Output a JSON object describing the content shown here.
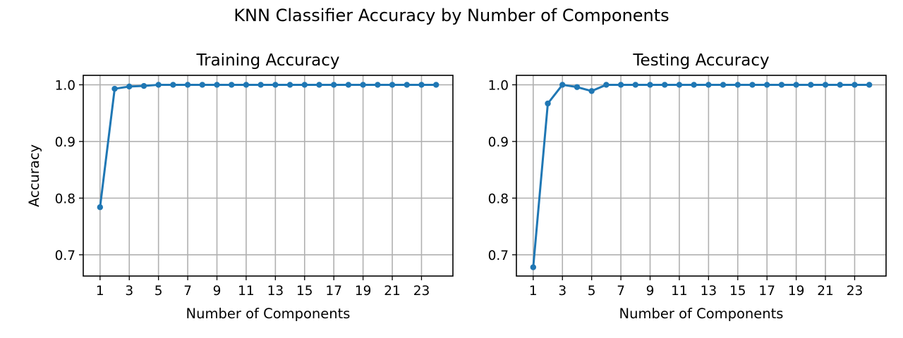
{
  "figure": {
    "suptitle": "KNN Classifier Accuracy by Number of Components"
  },
  "chart_data": [
    {
      "type": "line",
      "title": "Training Accuracy",
      "xlabel": "Number of Components",
      "ylabel": "Accuracy",
      "xlim": [
        -0.15,
        25.15
      ],
      "ylim": [
        0.6625,
        1.0167
      ],
      "xticks": [
        1,
        3,
        5,
        7,
        9,
        11,
        13,
        15,
        17,
        19,
        21,
        23
      ],
      "yticks": [
        0.7,
        0.8,
        0.9,
        1.0
      ],
      "ytick_labels": [
        "0.7",
        "0.8",
        "0.9",
        "1.0"
      ],
      "grid": true,
      "color": "#1f77b4",
      "marker": "circle",
      "series": [
        {
          "x": [
            1,
            2,
            3,
            4,
            5,
            6,
            7,
            8,
            9,
            10,
            11,
            12,
            13,
            14,
            15,
            16,
            17,
            18,
            19,
            20,
            21,
            22,
            23,
            24
          ],
          "values": [
            0.784,
            0.993,
            0.997,
            0.998,
            1.0,
            1.0,
            1.0,
            1.0,
            1.0,
            1.0,
            1.0,
            1.0,
            1.0,
            1.0,
            1.0,
            1.0,
            1.0,
            1.0,
            1.0,
            1.0,
            1.0,
            1.0,
            1.0,
            1.0
          ]
        }
      ]
    },
    {
      "type": "line",
      "title": "Testing Accuracy",
      "xlabel": "Number of Components",
      "ylabel": "",
      "xlim": [
        -0.15,
        25.15
      ],
      "ylim": [
        0.6625,
        1.0167
      ],
      "xticks": [
        1,
        3,
        5,
        7,
        9,
        11,
        13,
        15,
        17,
        19,
        21,
        23
      ],
      "yticks": [
        0.7,
        0.8,
        0.9,
        1.0
      ],
      "ytick_labels": [
        "0.7",
        "0.8",
        "0.9",
        "1.0"
      ],
      "grid": true,
      "color": "#1f77b4",
      "marker": "circle",
      "series": [
        {
          "x": [
            1,
            2,
            3,
            4,
            5,
            6,
            7,
            8,
            9,
            10,
            11,
            12,
            13,
            14,
            15,
            16,
            17,
            18,
            19,
            20,
            21,
            22,
            23,
            24
          ],
          "values": [
            0.678,
            0.967,
            1.0,
            0.996,
            0.989,
            1.0,
            1.0,
            1.0,
            1.0,
            1.0,
            1.0,
            1.0,
            1.0,
            1.0,
            1.0,
            1.0,
            1.0,
            1.0,
            1.0,
            1.0,
            1.0,
            1.0,
            1.0,
            1.0
          ]
        }
      ]
    }
  ]
}
